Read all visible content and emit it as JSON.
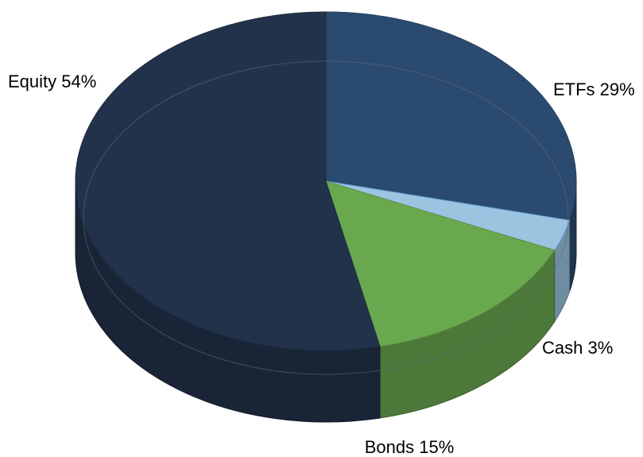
{
  "chart_data": {
    "type": "pie",
    "style": "3d",
    "title": "",
    "slices": [
      {
        "label": "ETFs",
        "value": 29,
        "text": "ETFs 29%",
        "color": "#2b4a6f"
      },
      {
        "label": "Cash",
        "value": 3,
        "text": "Cash 3%",
        "color": "#9cc3e0"
      },
      {
        "label": "Bonds",
        "value": 15,
        "text": "Bonds 15%",
        "color": "#6aa84f"
      },
      {
        "label": "Equity",
        "value": 54,
        "text": "Equity 54%",
        "color": "#23324b"
      }
    ],
    "start": "12 o'clock",
    "direction": "clockwise",
    "legend": "none"
  }
}
